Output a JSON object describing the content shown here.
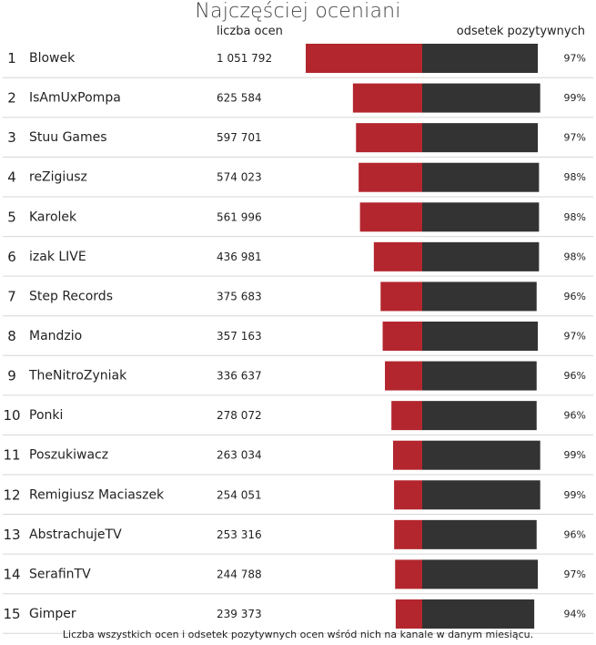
{
  "chart_data": {
    "type": "bar",
    "title": "Najczęściej oceniani",
    "header_count": "liczba ocen",
    "header_pct": "odsetek pozytywnych",
    "footnote": "Liczba wszystkich ocen i odsetek pozytywnych ocen wśród nich na kanale w danym miesiącu.",
    "colors": {
      "count_bar": "#b3262e",
      "pct_bar": "#333333",
      "separator": "#d6d6d6"
    },
    "rows": [
      {
        "rank": "1",
        "name": "Blowek",
        "count_label": "1 051 792",
        "count": 1051792,
        "pct_label": "97%",
        "pct": 97
      },
      {
        "rank": "2",
        "name": "IsAmUxPompa",
        "count_label": "625 584",
        "count": 625584,
        "pct_label": "99%",
        "pct": 99
      },
      {
        "rank": "3",
        "name": "Stuu Games",
        "count_label": "597 701",
        "count": 597701,
        "pct_label": "97%",
        "pct": 97
      },
      {
        "rank": "4",
        "name": "reZigiusz",
        "count_label": "574 023",
        "count": 574023,
        "pct_label": "98%",
        "pct": 98
      },
      {
        "rank": "5",
        "name": "Karolek",
        "count_label": "561 996",
        "count": 561996,
        "pct_label": "98%",
        "pct": 98
      },
      {
        "rank": "6",
        "name": "izak LIVE",
        "count_label": "436 981",
        "count": 436981,
        "pct_label": "98%",
        "pct": 98
      },
      {
        "rank": "7",
        "name": "Step Records",
        "count_label": "375 683",
        "count": 375683,
        "pct_label": "96%",
        "pct": 96
      },
      {
        "rank": "8",
        "name": "Mandzio",
        "count_label": "357 163",
        "count": 357163,
        "pct_label": "97%",
        "pct": 97
      },
      {
        "rank": "9",
        "name": "TheNitroZyniak",
        "count_label": "336 637",
        "count": 336637,
        "pct_label": "96%",
        "pct": 96
      },
      {
        "rank": "10",
        "name": "Ponki",
        "count_label": "278 072",
        "count": 278072,
        "pct_label": "96%",
        "pct": 96
      },
      {
        "rank": "11",
        "name": "Poszukiwacz",
        "count_label": "263 034",
        "count": 263034,
        "pct_label": "99%",
        "pct": 99
      },
      {
        "rank": "12",
        "name": "Remigiusz Maciaszek",
        "count_label": "254 051",
        "count": 254051,
        "pct_label": "99%",
        "pct": 99
      },
      {
        "rank": "13",
        "name": "AbstrachujeTV",
        "count_label": "253 316",
        "count": 253316,
        "pct_label": "96%",
        "pct": 96
      },
      {
        "rank": "14",
        "name": "SerafinTV",
        "count_label": "244 788",
        "count": 244788,
        "pct_label": "97%",
        "pct": 97
      },
      {
        "rank": "15",
        "name": "Gimper",
        "count_label": "239 373",
        "count": 239373,
        "pct_label": "94%",
        "pct": 94
      }
    ]
  }
}
